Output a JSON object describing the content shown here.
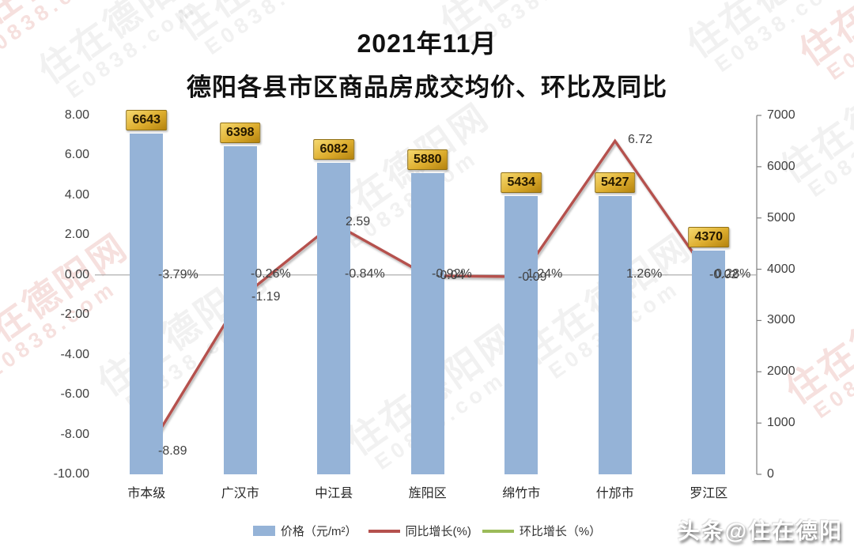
{
  "watermark": {
    "line1": "住在德阳网",
    "line2": "E0838.com"
  },
  "title": {
    "line1": "2021年11月",
    "line2": "德阳各县市区商品房成交均价、环比及同比"
  },
  "chart_data": {
    "type": "bar",
    "subtype": "combo-bar-line",
    "title": "2021年11月 德阳各县市区商品房成交均价、环比及同比",
    "categories": [
      "市本级",
      "广汉市",
      "中江县",
      "旌阳区",
      "绵竹市",
      "什邡市",
      "罗江区"
    ],
    "series": [
      {
        "name": "价格（元/m²）",
        "kind": "bar",
        "axis": "right",
        "color": "#95b3d7",
        "values": [
          6643,
          6398,
          6082,
          5880,
          5434,
          5427,
          4370
        ],
        "labels": [
          "6643",
          "6398",
          "6082",
          "5880",
          "5434",
          "5427",
          "4370"
        ]
      },
      {
        "name": "同比增长(%)",
        "kind": "line",
        "axis": "left",
        "color": "#b5514e",
        "values": [
          -8.89,
          -1.19,
          2.59,
          -0.04,
          -0.09,
          6.72,
          -0.02
        ],
        "labels": [
          "-8.89",
          "-1.19",
          "2.59",
          "-0.04",
          "-0.09",
          "6.72",
          "-0.02"
        ]
      },
      {
        "name": "环比增长（%）",
        "kind": "line",
        "axis": "left",
        "color": "#9bbb59",
        "values": [
          -3.79,
          -0.26,
          -0.84,
          -0.92,
          1.24,
          1.26,
          0.28
        ],
        "labels": [
          "-3.79%",
          "-0.26%",
          "-0.84%",
          "-0.92%",
          "1.24%",
          "1.26%",
          "0.28%"
        ]
      }
    ],
    "left_axis": {
      "min": -10,
      "max": 8,
      "ticks": [
        "8.00",
        "6.00",
        "4.00",
        "2.00",
        "0.00",
        "-2.00",
        "-4.00",
        "-6.00",
        "-8.00",
        "-10.00"
      ]
    },
    "right_axis": {
      "min": 0,
      "max": 7000,
      "ticks": [
        "7000",
        "6000",
        "5000",
        "4000",
        "3000",
        "2000",
        "1000",
        "0"
      ]
    },
    "legend_position": "bottom",
    "grid": "off",
    "colors": {
      "bar": "#95b3d7",
      "yoy_line": "#b5514e",
      "mom_line": "#9bbb59",
      "value_badge_bg": "#d9a92c",
      "value_badge_text": "#241800",
      "zero_line": "#a6a6a6"
    }
  },
  "footer": {
    "credit": "头条@住在德阳"
  }
}
